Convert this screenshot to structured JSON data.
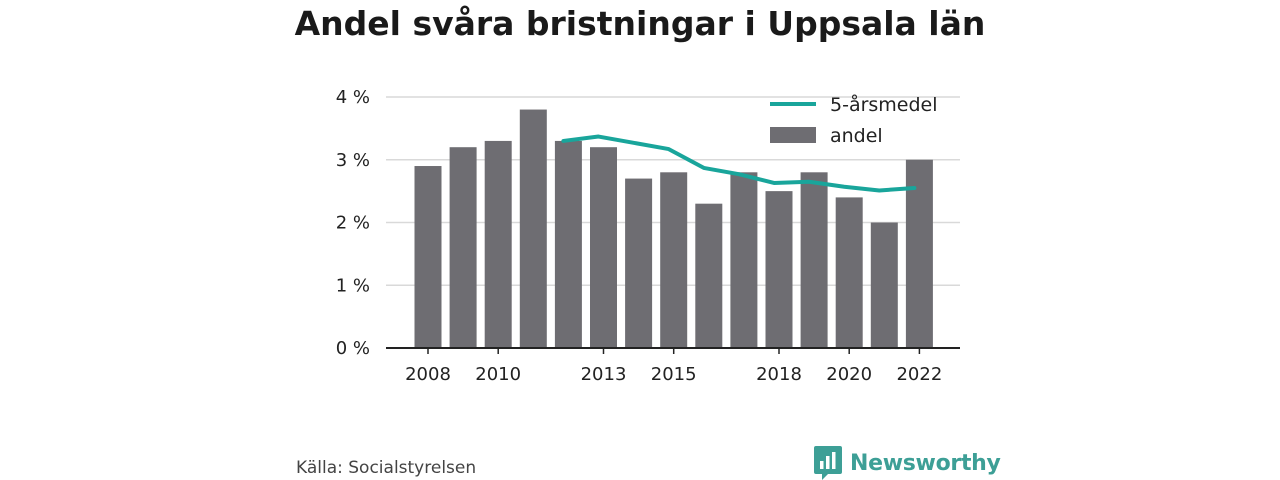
{
  "title": "Andel svåra bristningar i Uppsala län",
  "source": "Källa: Socialstyrelsen",
  "brand": {
    "name": "Newsworthy",
    "icon": "bar-chart-icon",
    "color": "#3d9f96"
  },
  "colors": {
    "bar": "#6e6d72",
    "line": "#19a59b",
    "grid": "#d9d9d9",
    "axis": "#222222"
  },
  "chart_data": {
    "type": "bar",
    "title": "Andel svåra bristningar i Uppsala län",
    "x": [
      2008,
      2009,
      2010,
      2011,
      2012,
      2013,
      2014,
      2015,
      2016,
      2017,
      2018,
      2019,
      2020,
      2021,
      2022
    ],
    "x_tick_labels": [
      "2008",
      "2010",
      "2013",
      "2015",
      "2018",
      "2020",
      "2022"
    ],
    "x_tick_values": [
      2008,
      2010,
      2013,
      2015,
      2018,
      2020,
      2022
    ],
    "y_tick_labels": [
      "0 %",
      "1 %",
      "2 %",
      "3 %",
      "4 %"
    ],
    "y_tick_values": [
      0,
      1,
      2,
      3,
      4
    ],
    "ylim": [
      0,
      4
    ],
    "grid": true,
    "legend_position": "top-right",
    "series": [
      {
        "name": "andel",
        "type": "bar",
        "values": [
          2.9,
          3.2,
          3.3,
          3.8,
          3.3,
          3.2,
          2.7,
          2.8,
          2.3,
          2.8,
          2.5,
          2.8,
          2.4,
          2.0,
          3.0
        ]
      },
      {
        "name": "5-årsmedel",
        "type": "line",
        "values": [
          null,
          null,
          null,
          null,
          3.3,
          3.37,
          3.27,
          3.17,
          2.87,
          2.77,
          2.63,
          2.65,
          2.57,
          2.51,
          2.55
        ]
      }
    ],
    "legend": [
      {
        "label": "5-årsmedel",
        "kind": "line"
      },
      {
        "label": "andel",
        "kind": "bar"
      }
    ]
  }
}
